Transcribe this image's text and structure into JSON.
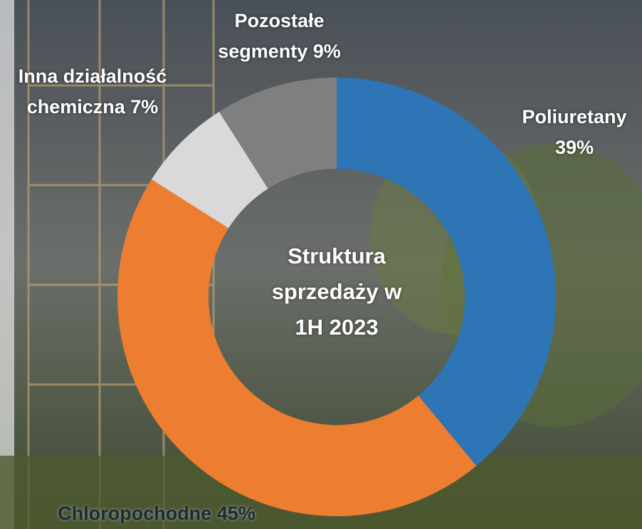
{
  "chart_data": {
    "type": "donut",
    "title": "Struktura sprzedaży w 1H 2023",
    "categories": [
      "Poliuretany",
      "Chloropochodne",
      "Inna działalność chemiczna",
      "Pozostałe segmenty"
    ],
    "values": [
      39,
      45,
      7,
      9
    ],
    "value_labels": [
      "39%",
      "45%",
      "7%",
      "9%"
    ],
    "colors": [
      "#2e75b6",
      "#ed7d31",
      "#d9d9d9",
      "#7f7f7f"
    ]
  }
}
